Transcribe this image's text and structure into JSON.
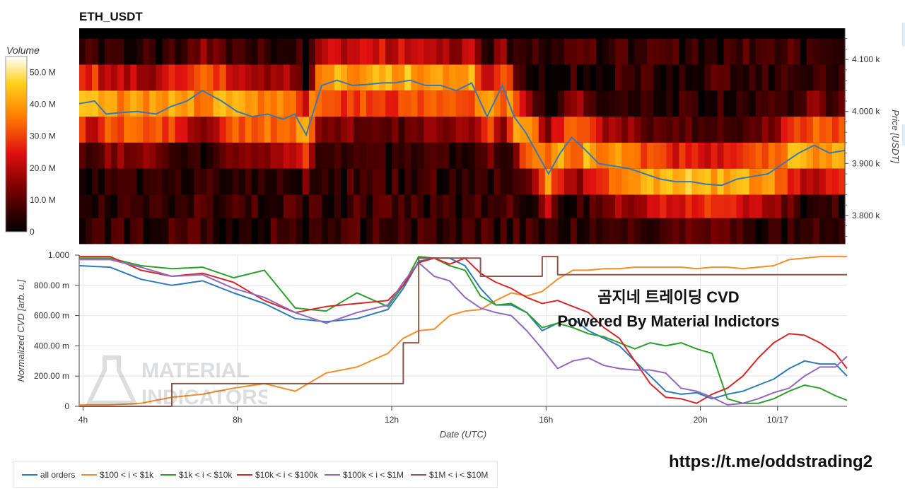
{
  "title": "ETH_USDT",
  "overlay": {
    "line1": "곰지네 트레이딩 CVD",
    "line2": "Powered By Material Indictors"
  },
  "link": "https://t.me/oddstrading2",
  "watermark": {
    "line1": "MATERIAL",
    "line2": "INDICATORS"
  },
  "colors": {
    "all_orders": "#2e7bb8",
    "s100_1k": "#f28e2b",
    "s1k_10k": "#2ca02c",
    "s10k_100k": "#d62728",
    "s100k_1m": "#9467bd",
    "s1m_10m": "#8c564b",
    "price_line": "#3a78b3"
  },
  "chart_data": [
    {
      "type": "heatmap",
      "title": "ETH_USDT",
      "colorbar": {
        "label": "Volume",
        "ticks": [
          "0",
          "10.0 M",
          "20.0 M",
          "30.0 M",
          "40.0 M",
          "50.0 M"
        ],
        "range": [
          0,
          55
        ]
      },
      "ylabel": "Price [USDT]",
      "yticks": [
        "3.800 k",
        "3.900 k",
        "4.000 k",
        "4.100 k"
      ],
      "ylim": [
        3755,
        4160
      ],
      "xlim": [
        3.9,
        23.8
      ],
      "price_bins": [
        4115,
        4065,
        4015,
        3965,
        3915,
        3865,
        3815,
        3770
      ],
      "price_line": {
        "x": [
          3.9,
          4.3,
          4.6,
          5.0,
          5.4,
          5.9,
          6.3,
          6.7,
          7.1,
          7.6,
          8.0,
          8.4,
          8.8,
          9.2,
          9.5,
          9.8,
          10.2,
          10.6,
          11.0,
          11.4,
          11.8,
          12.1,
          12.5,
          12.9,
          13.3,
          13.7,
          14.1,
          14.5,
          14.9,
          15.2,
          15.5,
          15.8,
          16.1,
          16.4,
          16.7,
          17.0,
          17.4,
          17.8,
          18.2,
          18.6,
          19.0,
          19.4,
          19.8,
          20.2,
          20.6,
          21.0,
          21.4,
          21.8,
          22.2,
          22.6,
          23.0,
          23.4,
          23.8
        ],
        "y": [
          4015,
          4020,
          3995,
          3998,
          4000,
          3995,
          4010,
          4020,
          4040,
          4020,
          4000,
          3990,
          3995,
          3985,
          3995,
          3955,
          4050,
          4060,
          4050,
          4052,
          4055,
          4055,
          4060,
          4050,
          4050,
          4040,
          4055,
          3990,
          4050,
          3990,
          3960,
          3920,
          3880,
          3920,
          3950,
          3930,
          3900,
          3895,
          3890,
          3880,
          3870,
          3865,
          3865,
          3860,
          3858,
          3870,
          3875,
          3880,
          3900,
          3920,
          3935,
          3920,
          3925
        ]
      }
    },
    {
      "type": "line",
      "ylabel": "Normalized CVD [arb. u.]",
      "xlabel": "Date (UTC)",
      "xticks": [
        "4h",
        "8h",
        "12h",
        "16h",
        "20h",
        "10/17"
      ],
      "yticks": [
        "0",
        "200.00 m",
        "400.00 m",
        "600.00 m",
        "800.00 m",
        "1.000"
      ],
      "ylim": [
        0,
        1
      ],
      "xlim": [
        3.9,
        23.8
      ],
      "x": [
        3.9,
        4.7,
        5.5,
        6.3,
        7.1,
        7.9,
        8.7,
        9.5,
        10.3,
        11.1,
        11.9,
        12.3,
        12.7,
        13.1,
        13.5,
        13.9,
        14.3,
        14.7,
        15.1,
        15.5,
        15.9,
        16.3,
        16.7,
        17.1,
        17.5,
        17.9,
        18.3,
        18.7,
        19.1,
        19.5,
        19.9,
        20.3,
        20.7,
        21.1,
        21.5,
        21.9,
        22.3,
        22.7,
        23.1,
        23.5,
        23.8
      ],
      "series": [
        {
          "name": "all orders",
          "values": [
            0.93,
            0.92,
            0.84,
            0.8,
            0.83,
            0.75,
            0.68,
            0.58,
            0.56,
            0.58,
            0.64,
            0.78,
            0.96,
            0.98,
            0.98,
            0.93,
            0.78,
            0.67,
            0.67,
            0.62,
            0.5,
            0.55,
            0.58,
            0.5,
            0.45,
            0.4,
            0.3,
            0.2,
            0.1,
            0.08,
            0.09,
            0.05,
            0.08,
            0.1,
            0.14,
            0.18,
            0.25,
            0.3,
            0.28,
            0.28,
            0.2
          ]
        },
        {
          "name": "$100 < i < $1k",
          "values": [
            0.01,
            0.01,
            0.02,
            0.06,
            0.08,
            0.12,
            0.15,
            0.1,
            0.22,
            0.26,
            0.35,
            0.45,
            0.5,
            0.51,
            0.6,
            0.63,
            0.64,
            0.7,
            0.75,
            0.73,
            0.76,
            0.84,
            0.9,
            0.9,
            0.91,
            0.91,
            0.92,
            0.92,
            0.92,
            0.92,
            0.91,
            0.92,
            0.92,
            0.91,
            0.92,
            0.93,
            0.97,
            0.98,
            0.99,
            0.99,
            0.99
          ]
        },
        {
          "name": "$1k < i < $10k",
          "values": [
            0.98,
            0.98,
            0.93,
            0.91,
            0.92,
            0.85,
            0.9,
            0.65,
            0.63,
            0.75,
            0.66,
            0.8,
            0.99,
            0.98,
            0.93,
            0.9,
            0.73,
            0.67,
            0.68,
            0.62,
            0.52,
            0.55,
            0.52,
            0.48,
            0.46,
            0.42,
            0.38,
            0.42,
            0.4,
            0.42,
            0.38,
            0.35,
            0.05,
            0.02,
            0.02,
            0.05,
            0.1,
            0.14,
            0.12,
            0.07,
            0.04
          ]
        },
        {
          "name": "$10k < i < $100k",
          "values": [
            0.99,
            0.99,
            0.9,
            0.86,
            0.88,
            0.82,
            0.7,
            0.62,
            0.66,
            0.68,
            0.7,
            0.8,
            0.95,
            0.98,
            0.94,
            0.98,
            0.88,
            0.82,
            0.78,
            0.72,
            0.68,
            0.7,
            0.66,
            0.62,
            0.52,
            0.45,
            0.3,
            0.15,
            0.06,
            0.05,
            0.02,
            0.08,
            0.12,
            0.2,
            0.32,
            0.42,
            0.48,
            0.47,
            0.42,
            0.35,
            0.25
          ]
        },
        {
          "name": "$100k < i < $1M",
          "values": [
            0.97,
            0.97,
            0.92,
            0.86,
            0.87,
            0.78,
            0.72,
            0.62,
            0.55,
            0.62,
            0.67,
            0.82,
            0.95,
            0.86,
            0.83,
            0.72,
            0.65,
            0.62,
            0.6,
            0.5,
            0.38,
            0.25,
            0.3,
            0.32,
            0.27,
            0.25,
            0.24,
            0.24,
            0.22,
            0.12,
            0.1,
            0.06,
            0.01,
            0.02,
            0.05,
            0.09,
            0.12,
            0.2,
            0.26,
            0.26,
            0.33
          ]
        },
        {
          "name": "$1M < i < $10M",
          "values": [
            0.0,
            0.0,
            0.0,
            0.15,
            0.15,
            0.15,
            0.15,
            0.15,
            0.15,
            0.15,
            0.15,
            0.42,
            0.98,
            0.98,
            0.98,
            0.98,
            0.86,
            0.86,
            0.86,
            0.86,
            0.99,
            0.87,
            0.87,
            0.87,
            0.87,
            0.87,
            0.87,
            0.87,
            0.87,
            0.87,
            0.87,
            0.87,
            0.87,
            0.87,
            0.87,
            0.87,
            0.87,
            0.87,
            0.87,
            0.87,
            0.87
          ]
        }
      ],
      "legend": "bottom"
    }
  ]
}
